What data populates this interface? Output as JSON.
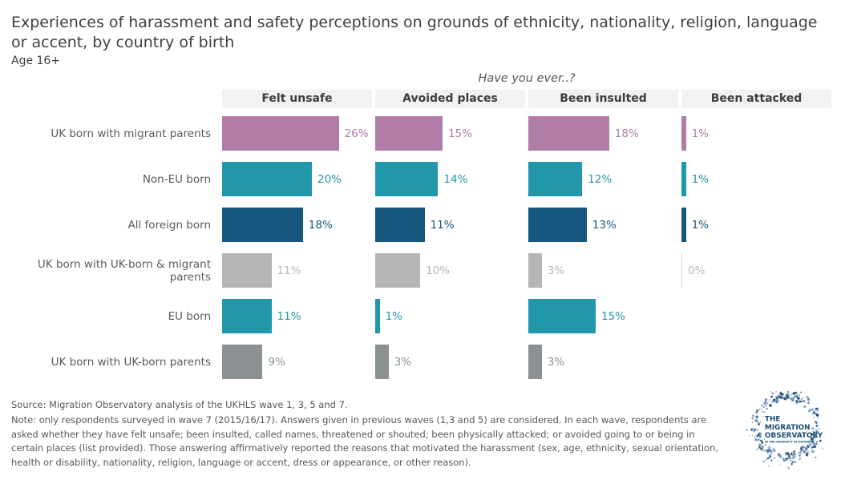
{
  "header": {
    "title": "Experiences of harassment and safety perceptions on grounds of ethnicity, nationality, religion, language or accent, by country of birth",
    "subtitle": "Age 16+"
  },
  "chart": {
    "question": "Have you ever..?"
  },
  "chart_data": {
    "type": "bar",
    "orientation": "horizontal",
    "panels": [
      "Felt unsafe",
      "Avoided places",
      "Been insulted",
      "Been attacked"
    ],
    "categories": [
      "UK born with migrant parents",
      "Non-EU born",
      "All foreign born",
      "UK born with UK-born & migrant parents",
      "EU born",
      "UK born with UK-born parents"
    ],
    "series": [
      {
        "name": "Felt unsafe",
        "values": [
          26,
          20,
          18,
          11,
          11,
          9
        ]
      },
      {
        "name": "Avoided places",
        "values": [
          15,
          14,
          11,
          10,
          1,
          3
        ]
      },
      {
        "name": "Been insulted",
        "values": [
          18,
          12,
          13,
          3,
          15,
          3
        ]
      },
      {
        "name": "Been attacked",
        "values": [
          1,
          1,
          1,
          0,
          null,
          null
        ]
      }
    ],
    "value_suffix": "%",
    "category_colors": [
      "#b17ca8",
      "#2197a9",
      "#16567e",
      "#b4b6b6",
      "#2197a9",
      "#8b9193"
    ],
    "zero_line_color": "#cfcfcf",
    "xlim": [
      0,
      33
    ],
    "legend_position": "none",
    "grid": false
  },
  "footer": {
    "source": "Source: Migration Observatory analysis of the UKHLS wave 1, 3, 5 and 7.",
    "note": "Note: only respondents surveyed in wave 7 (2015/16/17). Answers given in previous waves (1,3 and 5) are considered. In each wave, respondents are asked whether they have felt unsafe; been insulted, called names, threatened or shouted; been physically attacked; or avoided going to or being in certain places (list provided). Those answering affirmatively reported the reasons that motivated the harassment (sex, age, ethnicity, sexual orientation, health or disability, nationality, religion, language or accent, dress or appearance, or other reason)."
  },
  "logo": {
    "line1": "THE",
    "line2": "MIGRATION",
    "line3": "OBSERVATORY",
    "line4": "AT THE UNIVERSITY OF OXFORD",
    "text_color": "#1b4a72",
    "dot_colors": [
      "#1e3f66",
      "#2c5d8f",
      "#4a7fb5",
      "#16456e",
      "#6f9cc9"
    ]
  },
  "colors": {
    "title": "#3f3f3f",
    "header_strip_bg": "#f2f2f2",
    "header_strip_text": "#3d3d3d",
    "row_label": "#5a5a5a",
    "footer_text": "#575757"
  }
}
